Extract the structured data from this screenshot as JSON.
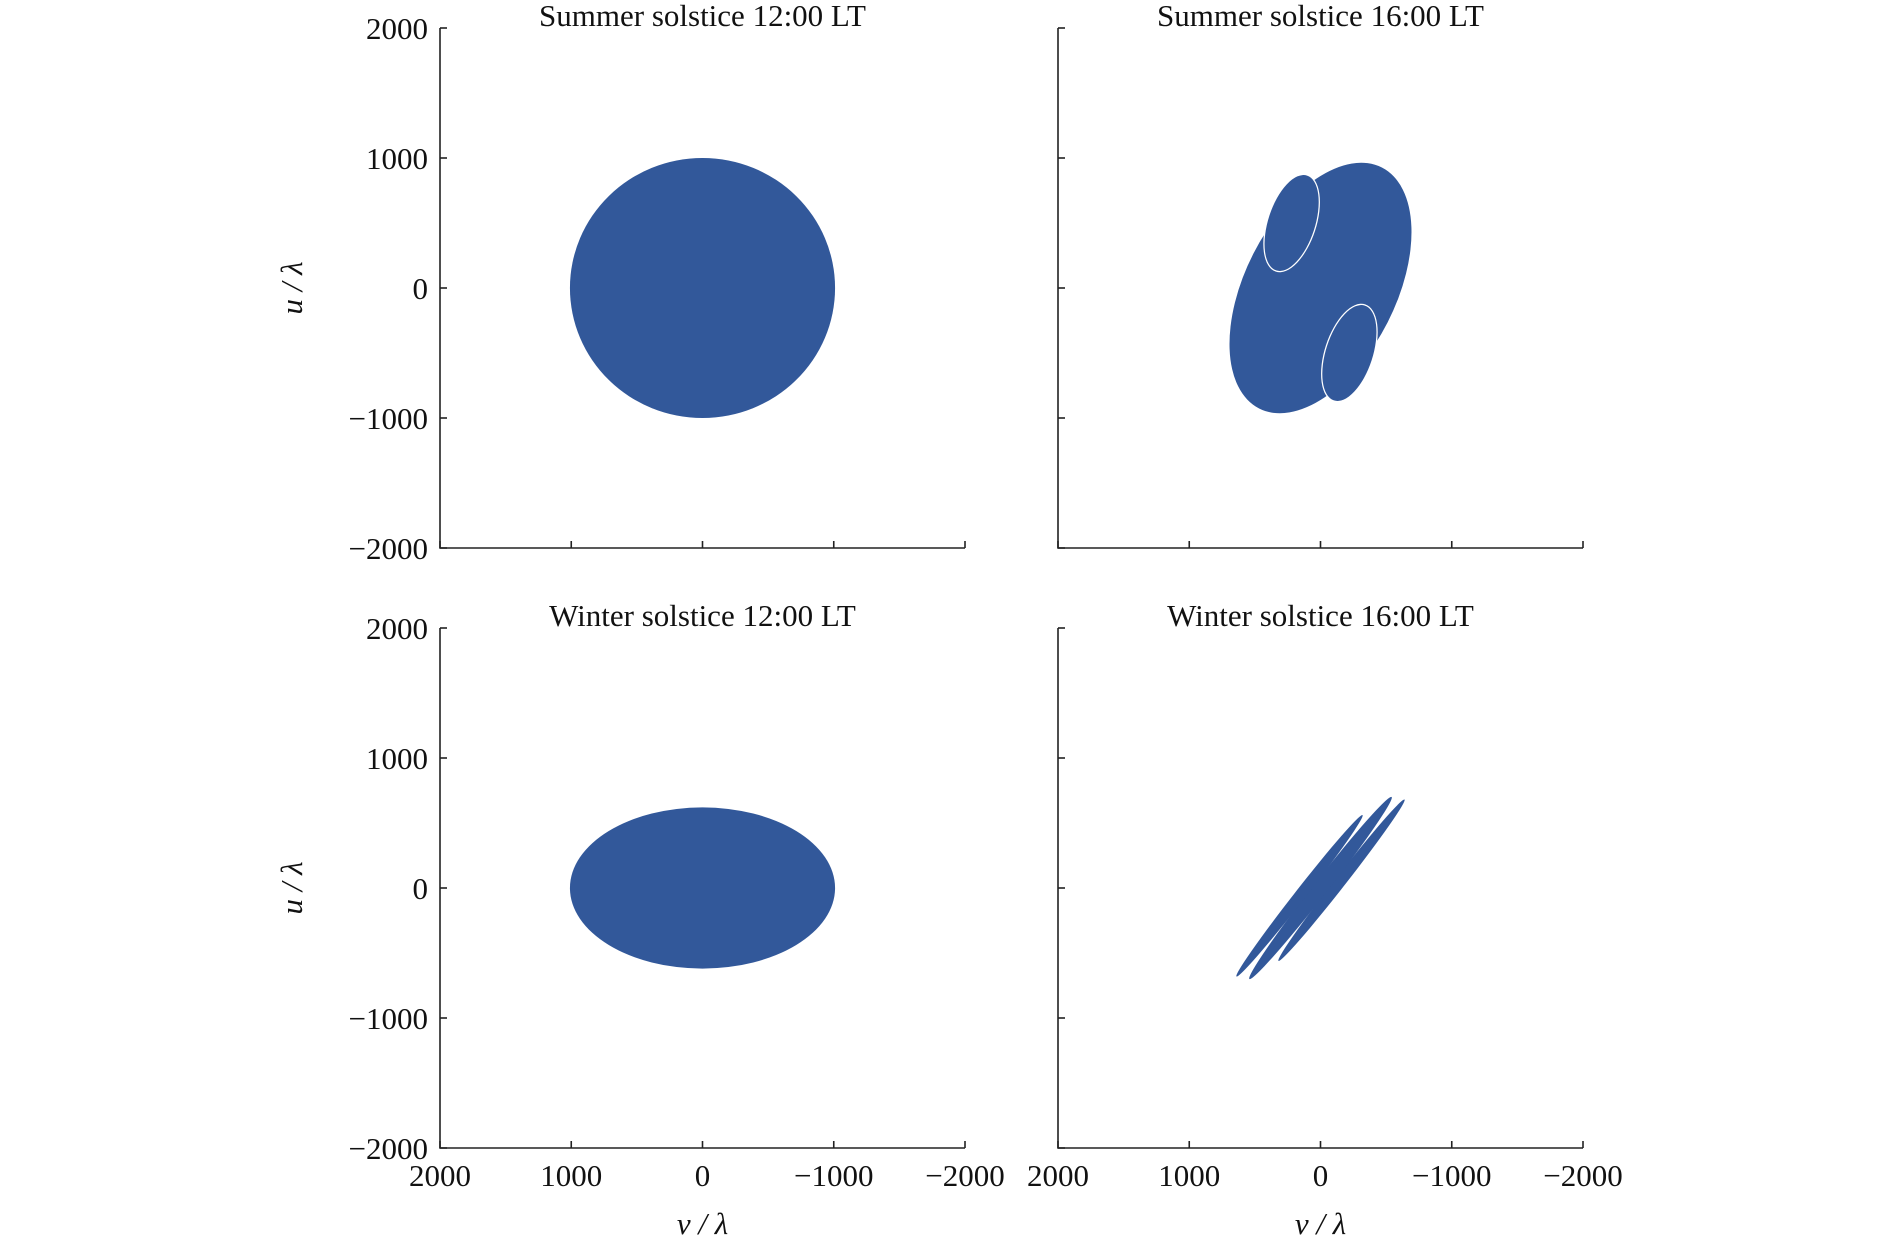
{
  "figure": {
    "fill_color": "#32589a",
    "gap_color": "#ffffff"
  },
  "chart_data": [
    {
      "type": "area",
      "title": "Summer solstice 12:00 LT",
      "xlabel": "",
      "ylabel": "u / λ",
      "xlim": [
        2000,
        -2000
      ],
      "ylim": [
        -2000,
        2000
      ],
      "x_ticks": [
        2000,
        1000,
        0,
        -1000,
        -2000
      ],
      "y_ticks": [
        2000,
        1000,
        0,
        -1000,
        -2000
      ],
      "x_tick_labels": [],
      "y_tick_labels": [
        "2000",
        "1000",
        "0",
        "−1000",
        "−2000"
      ],
      "coverage": {
        "shape": "ellipse",
        "center": [
          0,
          0
        ],
        "semi_axis_v": 1010,
        "semi_axis_u": 1000,
        "angle_deg": 0,
        "gaps": []
      }
    },
    {
      "type": "area",
      "title": "Summer solstice 16:00 LT",
      "xlabel": "",
      "ylabel": "",
      "xlim": [
        2000,
        -2000
      ],
      "ylim": [
        -2000,
        2000
      ],
      "x_ticks": [
        2000,
        1000,
        0,
        -1000,
        -2000
      ],
      "y_ticks": [
        2000,
        1000,
        0,
        -1000,
        -2000
      ],
      "x_tick_labels": [],
      "y_tick_labels": [],
      "coverage": {
        "shape": "ellipse",
        "center": [
          0,
          0
        ],
        "semi_axis_v": 1030,
        "semi_axis_u": 580,
        "angle_deg": 63,
        "gaps": [
          {
            "center": [
              220,
              500
            ],
            "semi_axis_v": 390,
            "semi_axis_u": 190,
            "angle_deg": 72
          },
          {
            "center": [
              -220,
              -500
            ],
            "semi_axis_v": 390,
            "semi_axis_u": 190,
            "angle_deg": 72
          }
        ]
      }
    },
    {
      "type": "area",
      "title": "Winter solstice 12:00 LT",
      "xlabel": "v / λ",
      "ylabel": "u / λ",
      "xlim": [
        2000,
        -2000
      ],
      "ylim": [
        -2000,
        2000
      ],
      "x_ticks": [
        2000,
        1000,
        0,
        -1000,
        -2000
      ],
      "y_ticks": [
        2000,
        1000,
        0,
        -1000,
        -2000
      ],
      "x_tick_labels": [
        "2000",
        "1000",
        "0",
        "−1000",
        "−2000"
      ],
      "y_tick_labels": [
        "2000",
        "1000",
        "0",
        "−1000",
        "−2000"
      ],
      "coverage": {
        "shape": "ellipse",
        "center": [
          0,
          0
        ],
        "semi_axis_v": 1010,
        "semi_axis_u": 620,
        "angle_deg": 0,
        "gaps": []
      }
    },
    {
      "type": "area",
      "title": "Winter solstice 16:00 LT",
      "xlabel": "v / λ",
      "ylabel": "",
      "xlim": [
        2000,
        -2000
      ],
      "ylim": [
        -2000,
        2000
      ],
      "x_ticks": [
        2000,
        1000,
        0,
        -1000,
        -2000
      ],
      "y_ticks": [
        2000,
        1000,
        0,
        -1000,
        -2000
      ],
      "x_tick_labels": [
        "2000",
        "1000",
        "0",
        "−1000",
        "−2000"
      ],
      "y_tick_labels": [],
      "coverage": {
        "shape": "bands",
        "angle_deg": 52,
        "bands": [
          {
            "center": [
              -160,
              60
            ],
            "semi_axis_long": 780,
            "semi_axis_short": 42
          },
          {
            "center": [
              0,
              0
            ],
            "semi_axis_long": 880,
            "semi_axis_short": 55
          },
          {
            "center": [
              160,
              -60
            ],
            "semi_axis_long": 780,
            "semi_axis_short": 42
          }
        ]
      }
    }
  ]
}
